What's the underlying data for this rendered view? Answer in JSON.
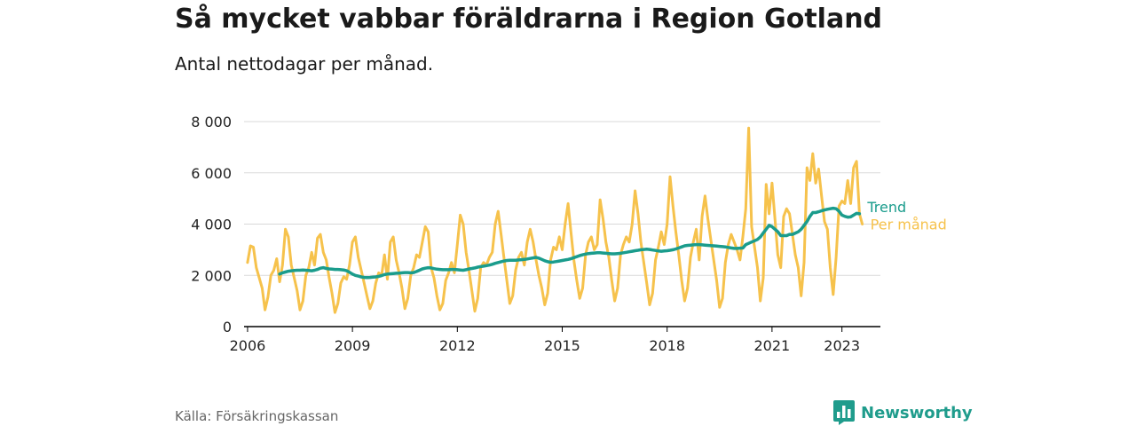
{
  "header": {
    "title": "Så mycket vabbar föräldrarna i Region Gotland",
    "subtitle": "Antal nettodagar per månad."
  },
  "footer": {
    "source": "Källa: Försäkringskassan",
    "brand": "Newsworthy",
    "brand_icon": "bar-chart-logo-icon"
  },
  "colors": {
    "monthly": "#f6c24c",
    "trend": "#1a9c8c",
    "grid": "#d9d9d9",
    "axis": "#000000",
    "brand": "#1f9c8c"
  },
  "chart_data": {
    "type": "line",
    "title": "Så mycket vabbar föräldrarna i Region Gotland",
    "subtitle": "Antal nettodagar per månad.",
    "xlabel": "",
    "ylabel": "",
    "x_unit": "year",
    "xlim": [
      2005.9,
      2024.1
    ],
    "ylim": [
      0,
      8000
    ],
    "grid": true,
    "yticks": [
      {
        "value": 0,
        "label": "0"
      },
      {
        "value": 2000,
        "label": "2 000"
      },
      {
        "value": 4000,
        "label": "4 000"
      },
      {
        "value": 6000,
        "label": "6 000"
      },
      {
        "value": 8000,
        "label": "8 000"
      }
    ],
    "xticks": [
      {
        "value": 2006,
        "label": "2006"
      },
      {
        "value": 2009,
        "label": "2009"
      },
      {
        "value": 2012,
        "label": "2012"
      },
      {
        "value": 2015,
        "label": "2015"
      },
      {
        "value": 2018,
        "label": "2018"
      },
      {
        "value": 2021,
        "label": "2021"
      },
      {
        "value": 2023,
        "label": "2023"
      }
    ],
    "series": [
      {
        "name": "Per månad",
        "start": 2006.0,
        "step_months": 1,
        "values": [
          2500,
          3150,
          3100,
          2300,
          1900,
          1500,
          650,
          1150,
          2000,
          2200,
          2650,
          1750,
          2400,
          3800,
          3500,
          2400,
          1900,
          1400,
          650,
          1000,
          2000,
          2300,
          2900,
          2400,
          3450,
          3600,
          2900,
          2600,
          1900,
          1300,
          550,
          900,
          1700,
          1950,
          1850,
          2400,
          3300,
          3500,
          2700,
          2200,
          1700,
          1200,
          700,
          1000,
          1700,
          2100,
          2000,
          2800,
          1850,
          3300,
          3500,
          2600,
          2100,
          1500,
          700,
          1100,
          2000,
          2300,
          2800,
          2700,
          3300,
          3900,
          3700,
          2300,
          1900,
          1200,
          650,
          900,
          1800,
          2100,
          2500,
          2100,
          3200,
          4350,
          4000,
          2900,
          2200,
          1400,
          600,
          1100,
          2300,
          2500,
          2400,
          2700,
          2900,
          4000,
          4500,
          3600,
          2700,
          1800,
          900,
          1200,
          2200,
          2700,
          2900,
          2400,
          3300,
          3800,
          3300,
          2600,
          2000,
          1500,
          850,
          1300,
          2600,
          3100,
          3000,
          3500,
          3000,
          4000,
          4800,
          3700,
          2600,
          1800,
          1100,
          1500,
          2800,
          3300,
          3500,
          3000,
          3200,
          4950,
          4200,
          3300,
          2700,
          1800,
          1000,
          1500,
          2800,
          3200,
          3500,
          3300,
          4000,
          5300,
          4400,
          3300,
          2500,
          1700,
          850,
          1300,
          2600,
          3100,
          3700,
          3200,
          4000,
          5850,
          4700,
          3700,
          2800,
          1800,
          1000,
          1500,
          2700,
          3300,
          3800,
          2600,
          4300,
          5100,
          4200,
          3400,
          2600,
          1800,
          750,
          1100,
          2500,
          3200,
          3600,
          3300,
          3000,
          2600,
          3500,
          4600,
          7750,
          3900,
          3100,
          2300,
          1000,
          1900,
          5550,
          4400,
          5600,
          4200,
          2800,
          2300,
          4300,
          4600,
          4400,
          3600,
          2800,
          2300,
          1200,
          2500,
          6200,
          5700,
          6750,
          5600,
          6150,
          5100,
          4100,
          3800,
          2300,
          1250,
          2700,
          4700,
          4900,
          4800,
          5700,
          4800,
          6200,
          6450,
          4400,
          4000
        ]
      },
      {
        "name": "Trend",
        "start": 2006.917,
        "step_months": 1,
        "values": [
          2050,
          2100,
          2130,
          2160,
          2180,
          2190,
          2200,
          2200,
          2210,
          2200,
          2190,
          2180,
          2200,
          2230,
          2280,
          2300,
          2270,
          2250,
          2240,
          2230,
          2230,
          2220,
          2210,
          2180,
          2120,
          2050,
          2000,
          1970,
          1940,
          1920,
          1910,
          1920,
          1930,
          1940,
          1960,
          1990,
          2030,
          2050,
          2060,
          2070,
          2080,
          2090,
          2100,
          2110,
          2110,
          2100,
          2110,
          2150,
          2200,
          2250,
          2280,
          2300,
          2290,
          2260,
          2240,
          2230,
          2220,
          2220,
          2220,
          2230,
          2230,
          2220,
          2210,
          2200,
          2220,
          2250,
          2270,
          2290,
          2320,
          2340,
          2360,
          2380,
          2400,
          2430,
          2470,
          2500,
          2530,
          2560,
          2580,
          2590,
          2590,
          2590,
          2600,
          2610,
          2620,
          2640,
          2660,
          2680,
          2700,
          2670,
          2620,
          2570,
          2530,
          2510,
          2520,
          2540,
          2560,
          2580,
          2600,
          2620,
          2650,
          2690,
          2730,
          2770,
          2800,
          2830,
          2850,
          2860,
          2870,
          2880,
          2880,
          2870,
          2860,
          2850,
          2840,
          2840,
          2850,
          2860,
          2880,
          2900,
          2920,
          2940,
          2960,
          2980,
          3000,
          3010,
          3020,
          3010,
          2990,
          2970,
          2950,
          2940,
          2950,
          2960,
          2980,
          3000,
          3030,
          3070,
          3110,
          3150,
          3170,
          3180,
          3190,
          3200,
          3200,
          3190,
          3180,
          3170,
          3160,
          3150,
          3140,
          3130,
          3120,
          3110,
          3090,
          3070,
          3050,
          3050,
          3060,
          3070,
          3200,
          3250,
          3300,
          3350,
          3400,
          3500,
          3650,
          3800,
          3950,
          3900,
          3800,
          3700,
          3550,
          3550,
          3550,
          3600,
          3600,
          3650,
          3700,
          3800,
          3950,
          4100,
          4300,
          4450,
          4450,
          4480,
          4520,
          4550,
          4580,
          4600,
          4620,
          4600,
          4500,
          4350,
          4300,
          4270,
          4280,
          4350,
          4420,
          4400
        ]
      }
    ]
  }
}
